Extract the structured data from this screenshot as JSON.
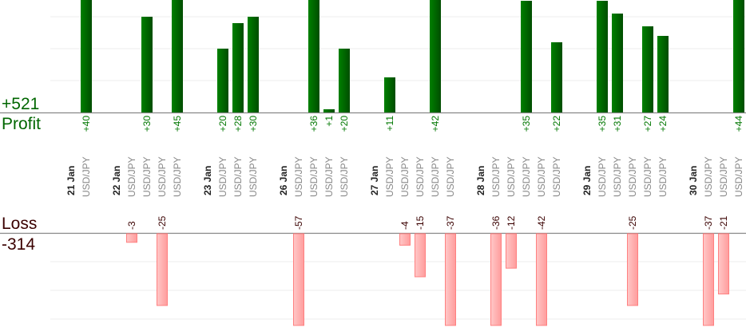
{
  "chart_data": {
    "type": "bar",
    "title": "",
    "profit_label": "Profit",
    "profit_total": "+521",
    "loss_label": "Loss",
    "loss_total": "-314",
    "units_per_gridline": 10,
    "colors": {
      "profit": "#006600",
      "profit_text": "#007700",
      "loss_fill": "#ffb0b0",
      "loss_border": "#ff8080",
      "loss_text": "#3a0000",
      "date_text": "#222222",
      "pair_text": "#888888"
    },
    "columns": [
      {
        "kind": "date",
        "label": "21 Jan"
      },
      {
        "kind": "trade",
        "pair": "USD/JPY",
        "value": 40,
        "label": "+40"
      },
      {
        "kind": "gap"
      },
      {
        "kind": "date",
        "label": "22 Jan"
      },
      {
        "kind": "trade",
        "pair": "USD/JPY",
        "value": -3,
        "label": "-3"
      },
      {
        "kind": "trade",
        "pair": "USD/JPY",
        "value": 30,
        "label": "+30"
      },
      {
        "kind": "trade",
        "pair": "USD/JPY",
        "value": -25,
        "label": "-25"
      },
      {
        "kind": "trade",
        "pair": "USD/JPY",
        "value": 45,
        "label": "+45"
      },
      {
        "kind": "gap"
      },
      {
        "kind": "date",
        "label": "23 Jan"
      },
      {
        "kind": "trade",
        "pair": "USD/JPY",
        "value": 20,
        "label": "+20"
      },
      {
        "kind": "trade",
        "pair": "USD/JPY",
        "value": 28,
        "label": "+28"
      },
      {
        "kind": "trade",
        "pair": "USD/JPY",
        "value": 30,
        "label": "+30"
      },
      {
        "kind": "gap"
      },
      {
        "kind": "date",
        "label": "26 Jan"
      },
      {
        "kind": "trade",
        "pair": "USD/JPY",
        "value": -57,
        "label": "-57"
      },
      {
        "kind": "trade",
        "pair": "USD/JPY",
        "value": 36,
        "label": "+36"
      },
      {
        "kind": "trade",
        "pair": "USD/JPY",
        "value": 1,
        "label": "+1"
      },
      {
        "kind": "trade",
        "pair": "USD/JPY",
        "value": 20,
        "label": "+20"
      },
      {
        "kind": "gap"
      },
      {
        "kind": "date",
        "label": "27 Jan"
      },
      {
        "kind": "trade",
        "pair": "USD/JPY",
        "value": 11,
        "label": "+11"
      },
      {
        "kind": "trade",
        "pair": "USD/JPY",
        "value": -4,
        "label": "-4"
      },
      {
        "kind": "trade",
        "pair": "USD/JPY",
        "value": -15,
        "label": "-15"
      },
      {
        "kind": "trade",
        "pair": "USD/JPY",
        "value": 42,
        "label": "+42"
      },
      {
        "kind": "trade",
        "pair": "USD/JPY",
        "value": -37,
        "label": "-37"
      },
      {
        "kind": "gap"
      },
      {
        "kind": "date",
        "label": "28 Jan"
      },
      {
        "kind": "trade",
        "pair": "USD/JPY",
        "value": -36,
        "label": "-36"
      },
      {
        "kind": "trade",
        "pair": "USD/JPY",
        "value": -12,
        "label": "-12"
      },
      {
        "kind": "trade",
        "pair": "USD/JPY",
        "value": 35,
        "label": "+35"
      },
      {
        "kind": "trade",
        "pair": "USD/JPY",
        "value": -42,
        "label": "-42"
      },
      {
        "kind": "trade",
        "pair": "USD/JPY",
        "value": 22,
        "label": "+22"
      },
      {
        "kind": "gap"
      },
      {
        "kind": "date",
        "label": "29 Jan"
      },
      {
        "kind": "trade",
        "pair": "USD/JPY",
        "value": 35,
        "label": "+35"
      },
      {
        "kind": "trade",
        "pair": "USD/JPY",
        "value": 31,
        "label": "+31"
      },
      {
        "kind": "trade",
        "pair": "USD/JPY",
        "value": -25,
        "label": "-25"
      },
      {
        "kind": "trade",
        "pair": "USD/JPY",
        "value": 27,
        "label": "+27"
      },
      {
        "kind": "trade",
        "pair": "USD/JPY",
        "value": 24,
        "label": "+24"
      },
      {
        "kind": "gap"
      },
      {
        "kind": "date",
        "label": "30 Jan"
      },
      {
        "kind": "trade",
        "pair": "USD/JPY",
        "value": -37,
        "label": "-37"
      },
      {
        "kind": "trade",
        "pair": "USD/JPY",
        "value": -21,
        "label": "-21"
      },
      {
        "kind": "trade",
        "pair": "USD/JPY",
        "value": 44,
        "label": "+44"
      }
    ]
  }
}
